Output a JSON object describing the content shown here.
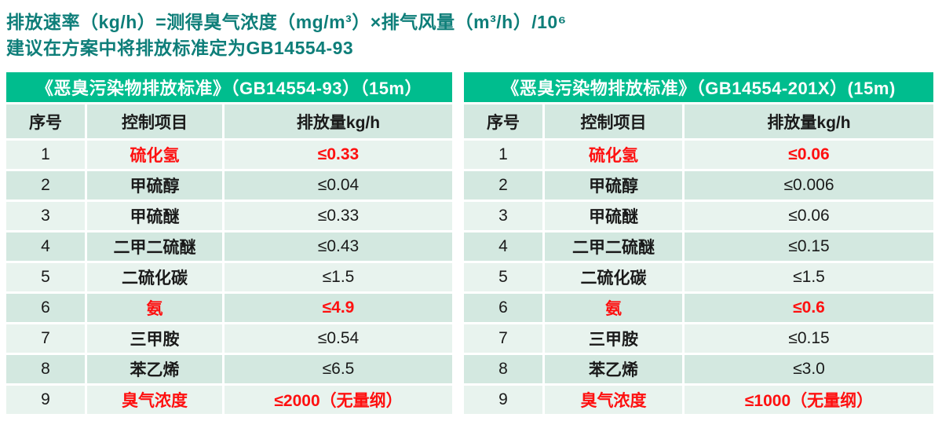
{
  "page": {
    "heading": {
      "line1": "排放速率（kg/h）=测得臭气浓度（mg/m³）×排气风量（m³/h）/10⁶",
      "line2": "建议在方案中将排放标准定为GB14554-93"
    }
  },
  "colors": {
    "heading_color": "#0e7e79",
    "table_title_bg": "#00bd8e",
    "table_title_text": "#ffffff",
    "row_light": "#e8f3ee",
    "row_dark": "#d3e8e0",
    "text_black": "#1a1a1a",
    "text_red": "#fe1010"
  },
  "tables": [
    {
      "title": "《恶臭污染物排放标准》（GB14554-93）（15m）",
      "columns": [
        "序号",
        "控制项目",
        "排放量kg/h"
      ],
      "rows": [
        {
          "no": "1",
          "item": "硫化氢",
          "value": "≤0.33",
          "highlight": true
        },
        {
          "no": "2",
          "item": "甲硫醇",
          "value": "≤0.04",
          "highlight": false
        },
        {
          "no": "3",
          "item": "甲硫醚",
          "value": "≤0.33",
          "highlight": false
        },
        {
          "no": "4",
          "item": "二甲二硫醚",
          "value": "≤0.43",
          "highlight": false
        },
        {
          "no": "5",
          "item": "二硫化碳",
          "value": "≤1.5",
          "highlight": false
        },
        {
          "no": "6",
          "item": "氨",
          "value": "≤4.9",
          "highlight": true
        },
        {
          "no": "7",
          "item": "三甲胺",
          "value": "≤0.54",
          "highlight": false
        },
        {
          "no": "8",
          "item": "苯乙烯",
          "value": "≤6.5",
          "highlight": false
        },
        {
          "no": "9",
          "item": "臭气浓度",
          "value": "≤2000（无量纲）",
          "highlight": true
        }
      ]
    },
    {
      "title": "《恶臭污染物排放标准》（GB14554-201X）(15m)",
      "columns": [
        "序号",
        "控制项目",
        "排放量kg/h"
      ],
      "rows": [
        {
          "no": "1",
          "item": "硫化氢",
          "value": "≤0.06",
          "highlight": true
        },
        {
          "no": "2",
          "item": "甲硫醇",
          "value": "≤0.006",
          "highlight": false
        },
        {
          "no": "3",
          "item": "甲硫醚",
          "value": "≤0.06",
          "highlight": false
        },
        {
          "no": "4",
          "item": "二甲二硫醚",
          "value": "≤0.15",
          "highlight": false
        },
        {
          "no": "5",
          "item": "二硫化碳",
          "value": "≤1.5",
          "highlight": false
        },
        {
          "no": "6",
          "item": "氨",
          "value": "≤0.6",
          "highlight": true
        },
        {
          "no": "7",
          "item": "三甲胺",
          "value": "≤0.15",
          "highlight": false
        },
        {
          "no": "8",
          "item": "苯乙烯",
          "value": "≤3.0",
          "highlight": false
        },
        {
          "no": "9",
          "item": "臭气浓度",
          "value": "≤1000（无量纲）",
          "highlight": true
        }
      ]
    }
  ]
}
